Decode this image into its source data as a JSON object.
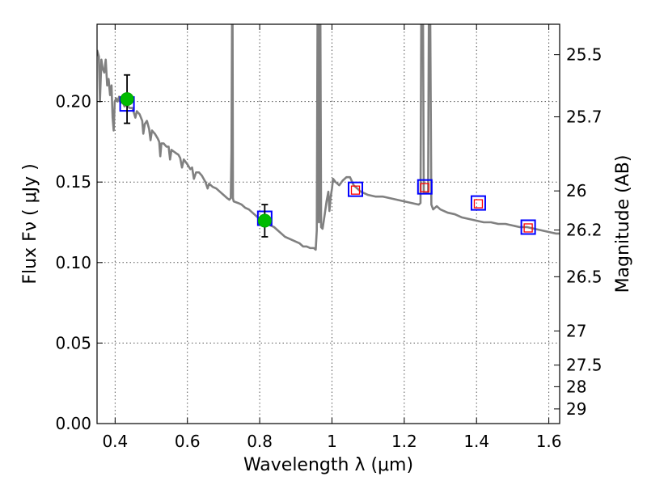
{
  "chart_data": {
    "type": "scatter",
    "title": "",
    "xlabel": "Wavelength  λ (μm)",
    "ylabel": "Flux  Fν  ( μJy )",
    "y2label": "Magnitude (AB)",
    "xlim": [
      0.35,
      1.63
    ],
    "ylim": [
      0.0,
      0.248
    ],
    "grid": true,
    "x_ticks": [
      0.4,
      0.6,
      0.8,
      1.0,
      1.2,
      1.4,
      1.6
    ],
    "x_tick_labels": [
      "0.4",
      "0.6",
      "0.8",
      "1",
      "1.2",
      "1.4",
      "1.6"
    ],
    "y_ticks": [
      0.0,
      0.05,
      0.1,
      0.15,
      0.2
    ],
    "y_tick_labels": [
      "0.00",
      "0.05",
      "0.10",
      "0.15",
      "0.20"
    ],
    "y2_ticks": [
      {
        "label": "25.5",
        "flux": 0.2291
      },
      {
        "label": "25.7",
        "flux": 0.1905
      },
      {
        "label": "26",
        "flux": 0.1445
      },
      {
        "label": "26.2",
        "flux": 0.1202
      },
      {
        "label": "26.5",
        "flux": 0.0912
      },
      {
        "label": "27",
        "flux": 0.0575
      },
      {
        "label": "27.5",
        "flux": 0.0363
      },
      {
        "label": "28",
        "flux": 0.0229
      },
      {
        "label": "29",
        "flux": 0.0091
      }
    ],
    "series": [
      {
        "name": "model-spectrum",
        "style": "line",
        "color": "#808080",
        "points": [
          [
            0.35,
            0.232
          ],
          [
            0.355,
            0.228
          ],
          [
            0.358,
            0.2
          ],
          [
            0.362,
            0.226
          ],
          [
            0.366,
            0.22
          ],
          [
            0.37,
            0.218
          ],
          [
            0.374,
            0.226
          ],
          [
            0.378,
            0.21
          ],
          [
            0.382,
            0.214
          ],
          [
            0.386,
            0.204
          ],
          [
            0.39,
            0.21
          ],
          [
            0.393,
            0.19
          ],
          [
            0.396,
            0.182
          ],
          [
            0.399,
            0.2
          ],
          [
            0.403,
            0.202
          ],
          [
            0.407,
            0.2
          ],
          [
            0.411,
            0.203
          ],
          [
            0.415,
            0.199
          ],
          [
            0.42,
            0.2
          ],
          [
            0.426,
            0.197
          ],
          [
            0.432,
            0.198
          ],
          [
            0.44,
            0.196
          ],
          [
            0.448,
            0.196
          ],
          [
            0.456,
            0.19
          ],
          [
            0.46,
            0.194
          ],
          [
            0.468,
            0.192
          ],
          [
            0.475,
            0.188
          ],
          [
            0.478,
            0.18
          ],
          [
            0.482,
            0.186
          ],
          [
            0.488,
            0.188
          ],
          [
            0.494,
            0.183
          ],
          [
            0.498,
            0.176
          ],
          [
            0.502,
            0.182
          ],
          [
            0.51,
            0.18
          ],
          [
            0.518,
            0.177
          ],
          [
            0.522,
            0.175
          ],
          [
            0.525,
            0.166
          ],
          [
            0.528,
            0.174
          ],
          [
            0.534,
            0.174
          ],
          [
            0.542,
            0.172
          ],
          [
            0.548,
            0.172
          ],
          [
            0.552,
            0.164
          ],
          [
            0.556,
            0.17
          ],
          [
            0.562,
            0.169
          ],
          [
            0.568,
            0.168
          ],
          [
            0.575,
            0.167
          ],
          [
            0.58,
            0.165
          ],
          [
            0.585,
            0.159
          ],
          [
            0.59,
            0.164
          ],
          [
            0.6,
            0.161
          ],
          [
            0.608,
            0.158
          ],
          [
            0.613,
            0.159
          ],
          [
            0.618,
            0.152
          ],
          [
            0.624,
            0.156
          ],
          [
            0.632,
            0.156
          ],
          [
            0.64,
            0.154
          ],
          [
            0.65,
            0.15
          ],
          [
            0.656,
            0.146
          ],
          [
            0.66,
            0.149
          ],
          [
            0.67,
            0.147
          ],
          [
            0.68,
            0.146
          ],
          [
            0.69,
            0.144
          ],
          [
            0.7,
            0.142
          ],
          [
            0.71,
            0.14
          ],
          [
            0.716,
            0.139
          ],
          [
            0.72,
            0.14
          ],
          [
            0.722,
            0.17
          ],
          [
            0.7235,
            0.248
          ],
          [
            0.725,
            0.248
          ],
          [
            0.726,
            0.14
          ],
          [
            0.728,
            0.138
          ],
          [
            0.74,
            0.137
          ],
          [
            0.75,
            0.136
          ],
          [
            0.76,
            0.134
          ],
          [
            0.77,
            0.133
          ],
          [
            0.78,
            0.131
          ],
          [
            0.79,
            0.129
          ],
          [
            0.8,
            0.127
          ],
          [
            0.81,
            0.126
          ],
          [
            0.82,
            0.125
          ],
          [
            0.83,
            0.123
          ],
          [
            0.84,
            0.122
          ],
          [
            0.85,
            0.12
          ],
          [
            0.86,
            0.118
          ],
          [
            0.87,
            0.116
          ],
          [
            0.88,
            0.115
          ],
          [
            0.89,
            0.114
          ],
          [
            0.9,
            0.113
          ],
          [
            0.91,
            0.112
          ],
          [
            0.92,
            0.11
          ],
          [
            0.93,
            0.11
          ],
          [
            0.94,
            0.109
          ],
          [
            0.95,
            0.109
          ],
          [
            0.955,
            0.108
          ],
          [
            0.958,
            0.12
          ],
          [
            0.96,
            0.248
          ],
          [
            0.962,
            0.248
          ],
          [
            0.964,
            0.125
          ],
          [
            0.966,
            0.248
          ],
          [
            0.968,
            0.248
          ],
          [
            0.97,
            0.122
          ],
          [
            0.974,
            0.121
          ],
          [
            0.98,
            0.13
          ],
          [
            0.985,
            0.138
          ],
          [
            0.99,
            0.144
          ],
          [
            0.993,
            0.132
          ],
          [
            0.996,
            0.14
          ],
          [
            1.0,
            0.146
          ],
          [
            1.003,
            0.152
          ],
          [
            1.01,
            0.15
          ],
          [
            1.02,
            0.148
          ],
          [
            1.03,
            0.151
          ],
          [
            1.04,
            0.153
          ],
          [
            1.05,
            0.153
          ],
          [
            1.06,
            0.148
          ],
          [
            1.07,
            0.146
          ],
          [
            1.08,
            0.144
          ],
          [
            1.09,
            0.143
          ],
          [
            1.1,
            0.142
          ],
          [
            1.12,
            0.141
          ],
          [
            1.14,
            0.141
          ],
          [
            1.16,
            0.14
          ],
          [
            1.18,
            0.139
          ],
          [
            1.2,
            0.138
          ],
          [
            1.22,
            0.137
          ],
          [
            1.24,
            0.136
          ],
          [
            1.245,
            0.137
          ],
          [
            1.247,
            0.248
          ],
          [
            1.252,
            0.248
          ],
          [
            1.254,
            0.143
          ],
          [
            1.26,
            0.143
          ],
          [
            1.266,
            0.143
          ],
          [
            1.268,
            0.248
          ],
          [
            1.272,
            0.248
          ],
          [
            1.275,
            0.136
          ],
          [
            1.28,
            0.133
          ],
          [
            1.29,
            0.135
          ],
          [
            1.3,
            0.133
          ],
          [
            1.32,
            0.131
          ],
          [
            1.34,
            0.13
          ],
          [
            1.36,
            0.128
          ],
          [
            1.38,
            0.127
          ],
          [
            1.4,
            0.126
          ],
          [
            1.42,
            0.125
          ],
          [
            1.44,
            0.125
          ],
          [
            1.46,
            0.124
          ],
          [
            1.48,
            0.124
          ],
          [
            1.5,
            0.123
          ],
          [
            1.52,
            0.122
          ],
          [
            1.54,
            0.122
          ],
          [
            1.56,
            0.121
          ],
          [
            1.58,
            0.12
          ],
          [
            1.6,
            0.119
          ],
          [
            1.62,
            0.118
          ],
          [
            1.63,
            0.118
          ]
        ]
      },
      {
        "name": "observed-flux",
        "style": "marker-circle",
        "color": "#00bb00",
        "points": [
          {
            "x": 0.433,
            "y": 0.2015,
            "err": 0.015
          },
          {
            "x": 0.814,
            "y": 0.126,
            "err": 0.01
          }
        ]
      },
      {
        "name": "model-band-flux",
        "style": "marker-square-open",
        "color": "#0000ff",
        "points": [
          [
            0.433,
            0.1985
          ],
          [
            0.814,
            0.1275
          ],
          [
            1.065,
            0.1455
          ],
          [
            1.257,
            0.147
          ],
          [
            1.405,
            0.137
          ],
          [
            1.543,
            0.122
          ]
        ]
      },
      {
        "name": "upper-limit-flux",
        "style": "marker-square-small-open",
        "color": "#ff0000",
        "points": [
          [
            1.065,
            0.145
          ],
          [
            1.257,
            0.1465
          ],
          [
            1.405,
            0.1365
          ],
          [
            1.543,
            0.1215
          ]
        ]
      }
    ]
  }
}
